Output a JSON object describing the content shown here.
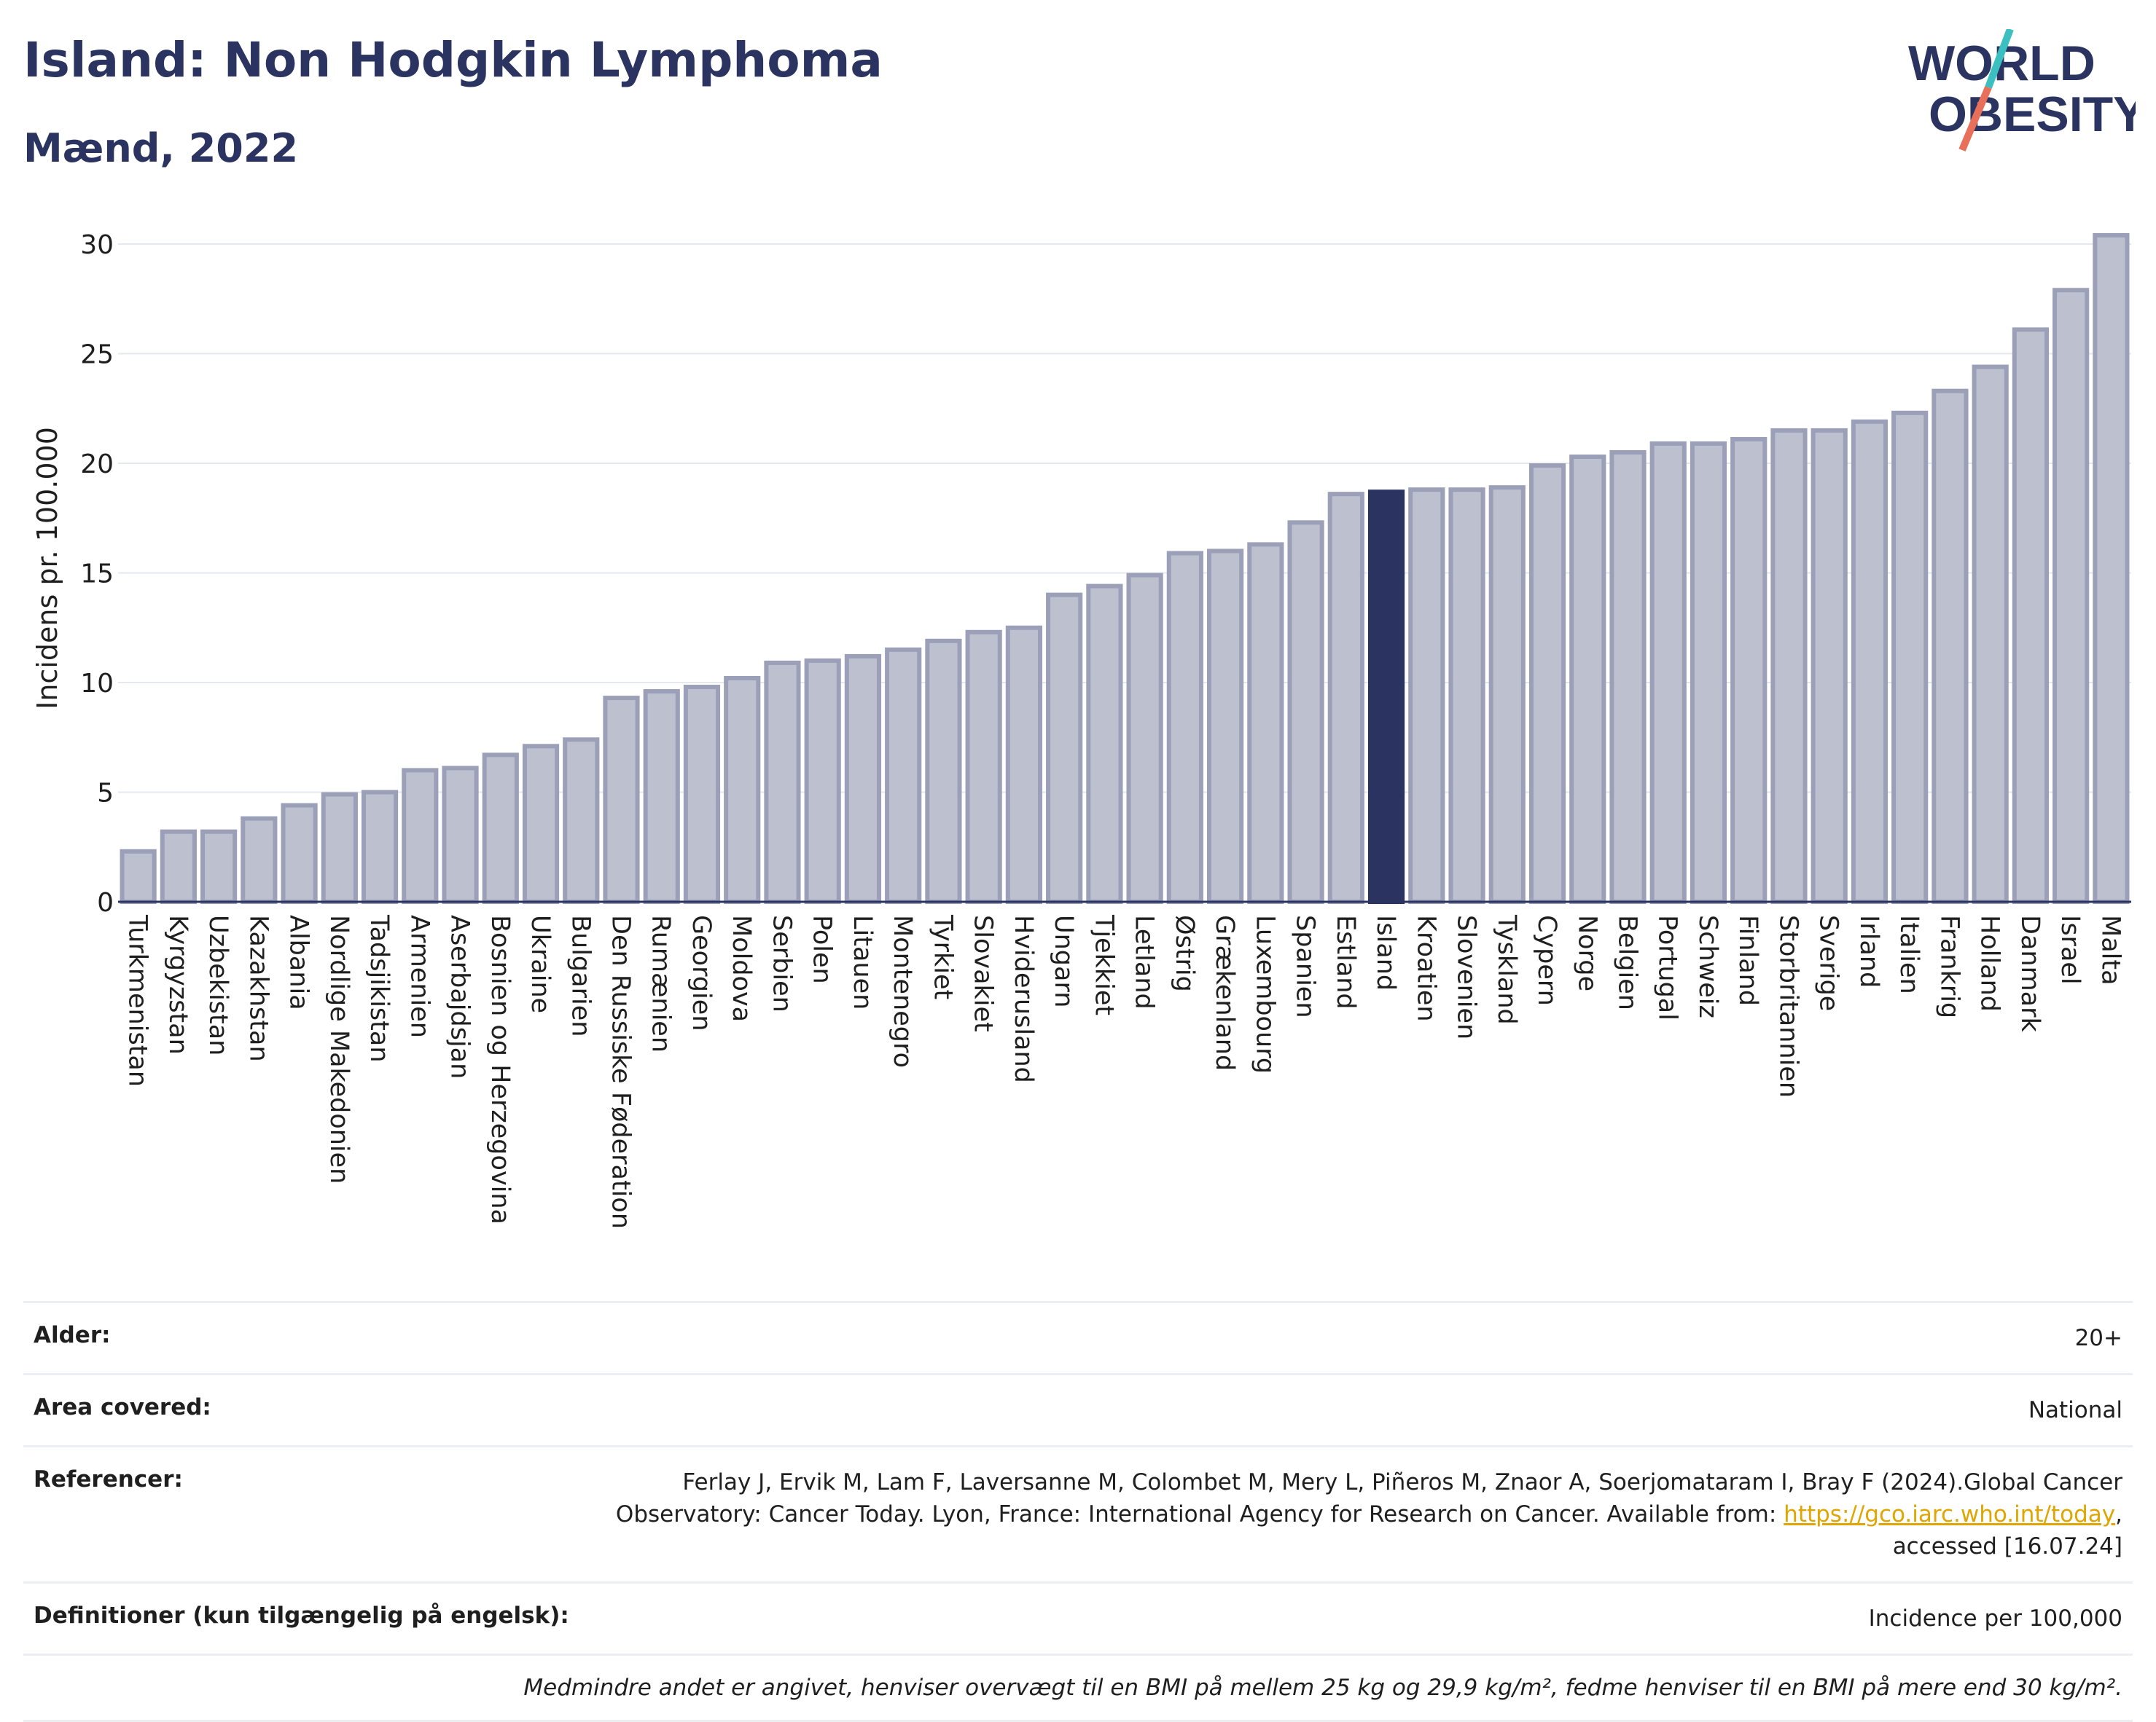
{
  "header": {
    "title": "Island: Non Hodgkin Lymphoma",
    "subtitle": "Mænd, 2022",
    "logo_line1": "WORLD",
    "logo_line2": "OBESITY"
  },
  "colors": {
    "bar": "#bcc0cf",
    "bar_stroke": "#9ba0b8",
    "highlight": "#2b3460",
    "title": "#2b3460",
    "logo_teal": "#3bbfc0",
    "logo_coral": "#e8705a"
  },
  "chart_data": {
    "type": "bar",
    "title": "Island: Non Hodgkin Lymphoma",
    "subtitle": "Mænd, 2022",
    "xlabel": "",
    "ylabel": "Incidens pr. 100.000",
    "ylim": [
      0,
      30.5
    ],
    "yticks": [
      0,
      5,
      10,
      15,
      20,
      25,
      30
    ],
    "grid": true,
    "highlight": "Island",
    "categories": [
      "Turkmenistan",
      "Kyrgyzstan",
      "Uzbekistan",
      "Kazakhstan",
      "Albania",
      "Nordlige Makedonien",
      "Tadsjikistan",
      "Armenien",
      "Aserbajdsjan",
      "Bosnien og Herzegovina",
      "Ukraine",
      "Bulgarien",
      "Den Russiske Føderation",
      "Rumænien",
      "Georgien",
      "Moldova",
      "Serbien",
      "Polen",
      "Litauen",
      "Montenegro",
      "Tyrkiet",
      "Slovakiet",
      "Hviderusland",
      "Ungarn",
      "Tjekkiet",
      "Letland",
      "Østrig",
      "Grækenland",
      "Luxembourg",
      "Spanien",
      "Estland",
      "Island",
      "Kroatien",
      "Slovenien",
      "Tyskland",
      "Cypern",
      "Norge",
      "Belgien",
      "Portugal",
      "Schweiz",
      "Finland",
      "Storbritannien",
      "Sverige",
      "Irland",
      "Italien",
      "Frankrig",
      "Holland",
      "Danmark",
      "Israel",
      "Malta"
    ],
    "values": [
      2.3,
      3.2,
      3.2,
      3.8,
      4.4,
      4.9,
      5.0,
      6.0,
      6.1,
      6.7,
      7.1,
      7.4,
      9.3,
      9.6,
      9.8,
      10.2,
      10.9,
      11.0,
      11.2,
      11.5,
      11.9,
      12.3,
      12.5,
      14.0,
      14.4,
      14.9,
      15.9,
      16.0,
      16.3,
      17.3,
      18.6,
      18.7,
      18.8,
      18.8,
      18.9,
      19.9,
      20.3,
      20.5,
      20.9,
      20.9,
      21.1,
      21.5,
      21.5,
      21.9,
      22.3,
      23.3,
      24.4,
      26.1,
      27.9,
      30.4
    ]
  },
  "info": {
    "rows": [
      {
        "label": "Alder:",
        "value": "20+"
      },
      {
        "label": "Area covered:",
        "value": "National"
      },
      {
        "label": "Referencer:",
        "value_pre": "Ferlay J, Ervik M, Lam F, Laversanne M, Colombet M, Mery L, Piñeros M, Znaor A, Soerjomataram I, Bray F (2024).Global Cancer Observatory: Cancer Today. Lyon, France: International Agency for Research on Cancer. Available from: ",
        "link": "https://gco.iarc.who.int/today",
        "value_post": ", accessed [16.07.24]"
      },
      {
        "label": "Definitioner (kun tilgængelig på engelsk):",
        "value": "Incidence per 100,000"
      }
    ],
    "footnote": "Medmindre andet er angivet, henviser overvægt til en BMI på mellem 25 kg og 29,9 kg/m², fedme henviser til en BMI på mere end 30 kg/m²."
  }
}
